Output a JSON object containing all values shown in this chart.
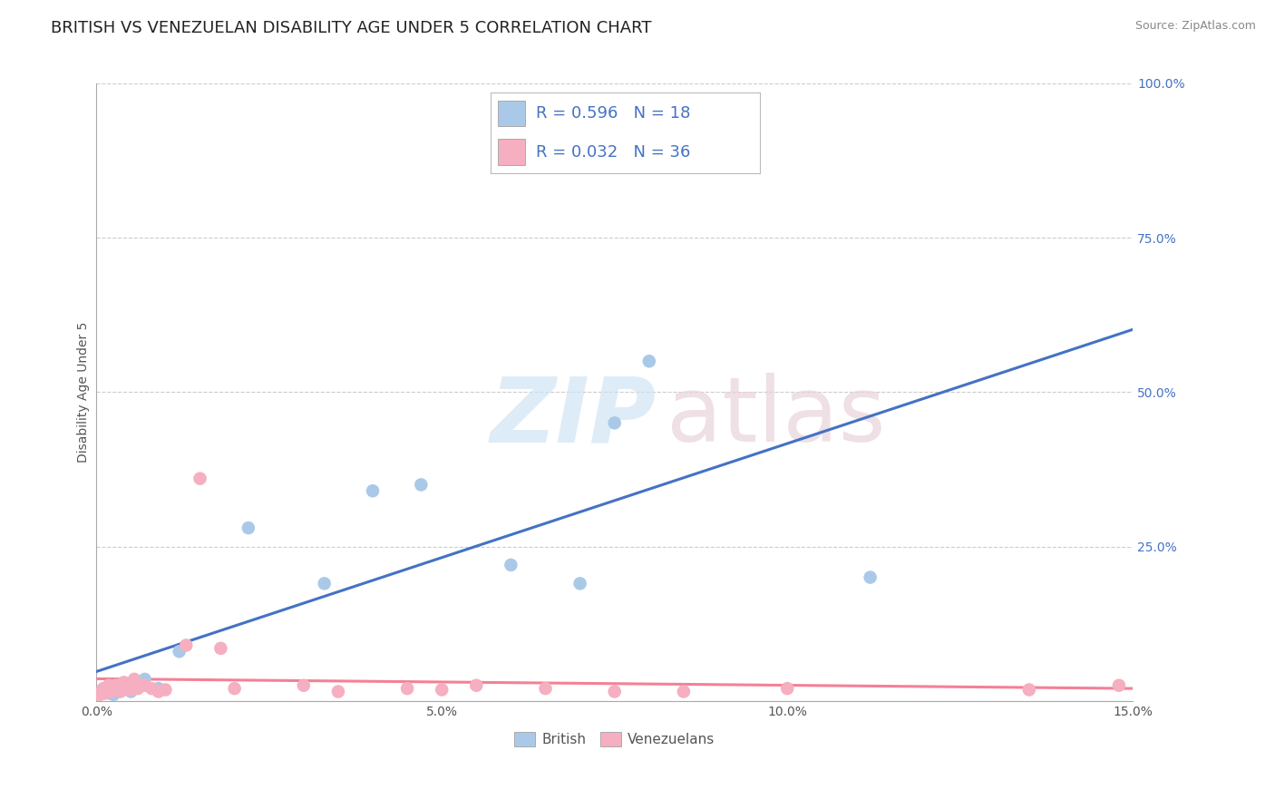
{
  "title": "BRITISH VS VENEZUELAN DISABILITY AGE UNDER 5 CORRELATION CHART",
  "source_text": "Source: ZipAtlas.com",
  "ylabel": "Disability Age Under 5",
  "xlim": [
    0.0,
    15.0
  ],
  "ylim": [
    0.0,
    100.0
  ],
  "x_ticks": [
    0.0,
    5.0,
    10.0,
    15.0
  ],
  "x_tick_labels": [
    "0.0%",
    "5.0%",
    "10.0%",
    "15.0%"
  ],
  "y_ticks_right": [
    0.0,
    25.0,
    50.0,
    75.0,
    100.0
  ],
  "y_tick_labels_right": [
    "",
    "25.0%",
    "50.0%",
    "75.0%",
    "100.0%"
  ],
  "british_color": "#aac9e8",
  "venezuelan_color": "#f5afc0",
  "british_line_color": "#4472c4",
  "venezuelan_line_color": "#f48096",
  "grid_color": "#cccccc",
  "background_color": "#ffffff",
  "british_x": [
    0.1,
    0.15,
    0.2,
    0.25,
    0.3,
    0.5,
    0.7,
    0.9,
    1.2,
    2.2,
    3.3,
    4.0,
    4.7,
    6.0,
    7.0,
    8.0,
    7.5,
    11.2
  ],
  "british_y": [
    1.5,
    2.0,
    1.2,
    1.0,
    2.5,
    1.5,
    3.5,
    2.0,
    8.0,
    28.0,
    19.0,
    34.0,
    35.0,
    22.0,
    19.0,
    55.0,
    45.0,
    20.0
  ],
  "venezuelan_x": [
    0.05,
    0.08,
    0.1,
    0.12,
    0.15,
    0.18,
    0.2,
    0.22,
    0.25,
    0.28,
    0.3,
    0.35,
    0.4,
    0.45,
    0.5,
    0.55,
    0.6,
    0.7,
    0.8,
    0.9,
    1.0,
    1.3,
    1.5,
    1.8,
    2.0,
    3.0,
    3.5,
    4.5,
    5.0,
    5.5,
    6.5,
    7.5,
    8.5,
    10.0,
    13.5,
    14.8
  ],
  "venezuelan_y": [
    1.0,
    1.5,
    2.0,
    1.2,
    1.8,
    2.5,
    1.5,
    2.0,
    1.8,
    2.5,
    2.0,
    1.5,
    3.0,
    2.0,
    1.8,
    3.5,
    2.0,
    2.5,
    2.0,
    1.5,
    1.8,
    9.0,
    36.0,
    8.5,
    2.0,
    2.5,
    1.5,
    2.0,
    1.8,
    2.5,
    2.0,
    1.5,
    1.5,
    2.0,
    1.8,
    2.5
  ],
  "watermark_zip": "ZIP",
  "watermark_atlas": "atlas",
  "title_fontsize": 13,
  "axis_label_fontsize": 10,
  "tick_fontsize": 10,
  "legend_fontsize": 13
}
